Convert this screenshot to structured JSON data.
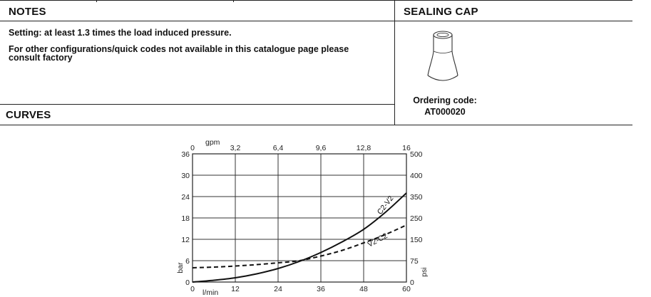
{
  "notes": {
    "title": "NOTES",
    "line1": "Setting: at least 1.3 times the load induced pressure.",
    "line2a": "For other configurations/quick codes not available in this catalogue page please",
    "line2b": "consult factory"
  },
  "sealing_cap": {
    "title": "SEALING CAP",
    "ordering_label": "Ordering code:",
    "ordering_code": "AT000020"
  },
  "curves": {
    "title": "CURVES"
  },
  "chart_data": {
    "type": "line",
    "x_unit_bottom": "l/min",
    "x_unit_top": "gpm",
    "y_unit_left": "bar",
    "y_unit_right": "psi",
    "x_bottom_ticks": [
      "0",
      "12",
      "24",
      "36",
      "48",
      "60"
    ],
    "x_top_ticks": [
      "0",
      "3,2",
      "6,4",
      "9,6",
      "12,8",
      "16"
    ],
    "y_left_ticks": [
      "0",
      "6",
      "12",
      "18",
      "24",
      "30",
      "36"
    ],
    "y_right_ticks": [
      "0",
      "75",
      "150",
      "250",
      "350",
      "400",
      "500"
    ],
    "xlim": [
      0,
      60
    ],
    "ylim": [
      0,
      36
    ],
    "grid": true,
    "series": [
      {
        "name": "C2-V2",
        "style": "solid",
        "x": [
          0,
          6,
          12,
          18,
          24,
          30,
          36,
          42,
          48,
          54,
          60
        ],
        "y": [
          0,
          0.5,
          1.2,
          2.3,
          3.8,
          5.8,
          8.3,
          11.3,
          14.8,
          19.5,
          25
        ]
      },
      {
        "name": "V2-C2",
        "style": "dashed",
        "x": [
          0,
          6,
          12,
          18,
          24,
          30,
          36,
          42,
          48,
          54,
          60
        ],
        "y": [
          4,
          4.2,
          4.5,
          4.9,
          5.4,
          6,
          7.3,
          8.9,
          11,
          13.3,
          16
        ]
      }
    ]
  }
}
